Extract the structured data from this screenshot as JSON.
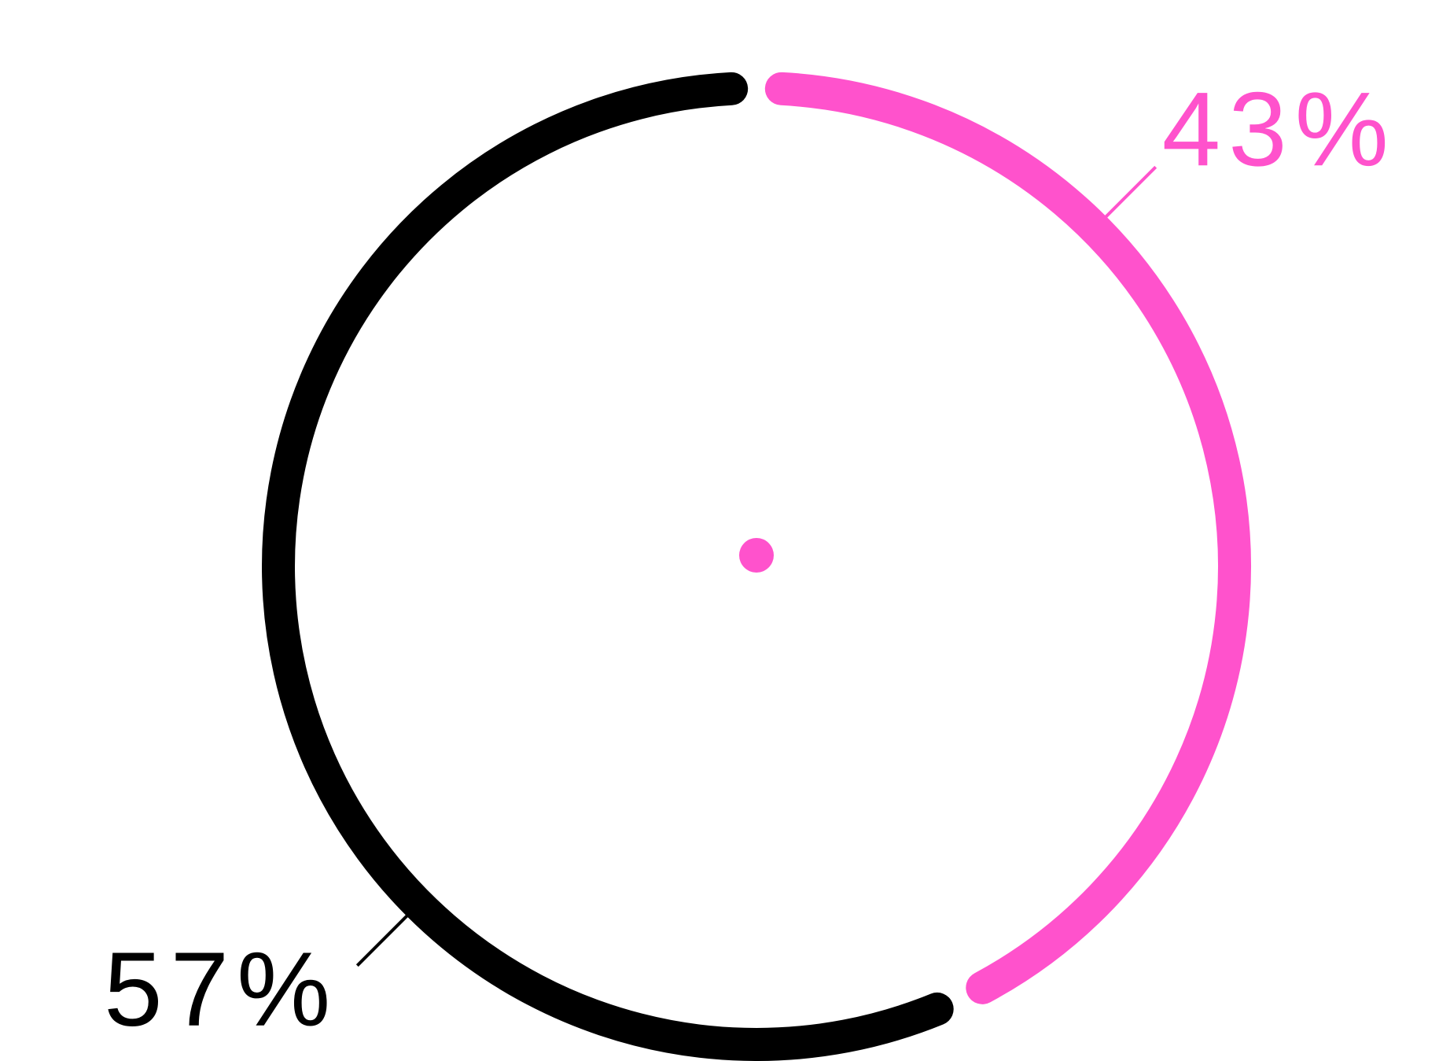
{
  "chart_data": {
    "type": "pie",
    "style": "donut-ring",
    "start_angle_deg": 0,
    "direction": "clockwise",
    "series": [
      {
        "label": "43%",
        "value": 43,
        "color": "#ff52cc"
      },
      {
        "label": "57%",
        "value": 57,
        "color": "#000000"
      }
    ],
    "center_dot_color": "#ff52cc",
    "background": "#ffffff",
    "legend": "none",
    "grid": false
  }
}
